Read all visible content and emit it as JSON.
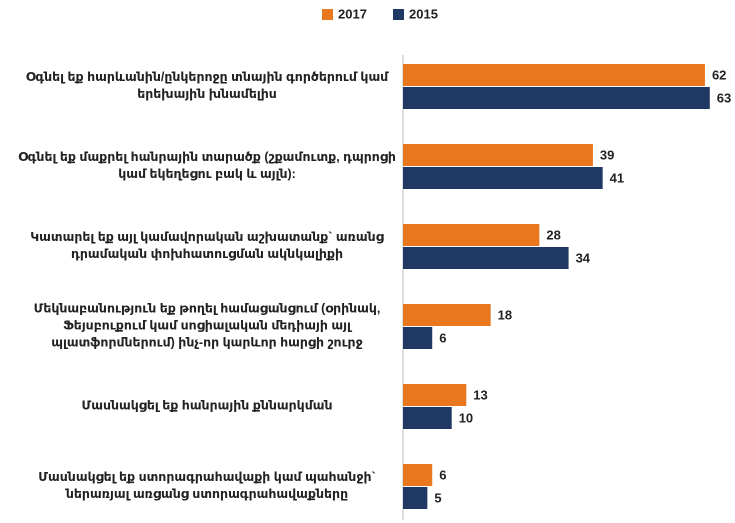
{
  "chart_data": {
    "type": "bar",
    "orientation": "horizontal",
    "categories": [
      "Օգնել եք հարևանին/ընկերոջը տնային գործերում կամ երեխային խնամելիս",
      "Օգնել եք մաքրել հանրային տարածք (շքամուտք, դպրոցի կամ եկեղեցու բակ և այլն):",
      "Կատարել եք այլ կամավորական աշխատանք` առանց դրամական փոխհատուցման ակնկալիքի",
      "Մեկնաբանություն եք թողել համացանցում (օրինակ, Ֆեյսբուքում կամ սոցիալական մեդիայի այլ պլատֆորմներում) ինչ-որ կարևոր հարցի շուրջ",
      "Մասնակցել եք հանրային քննարկման",
      "Մասնակցել եք ստորագրահավաքի կամ պահանջի` ներառյալ առցանց ստորագրահավաքները"
    ],
    "series": [
      {
        "name": "2017",
        "color": "#e8771e",
        "values": [
          62,
          39,
          28,
          18,
          13,
          6
        ]
      },
      {
        "name": "2015",
        "color": "#1f3864",
        "values": [
          63,
          41,
          34,
          6,
          10,
          5
        ]
      }
    ]
  }
}
